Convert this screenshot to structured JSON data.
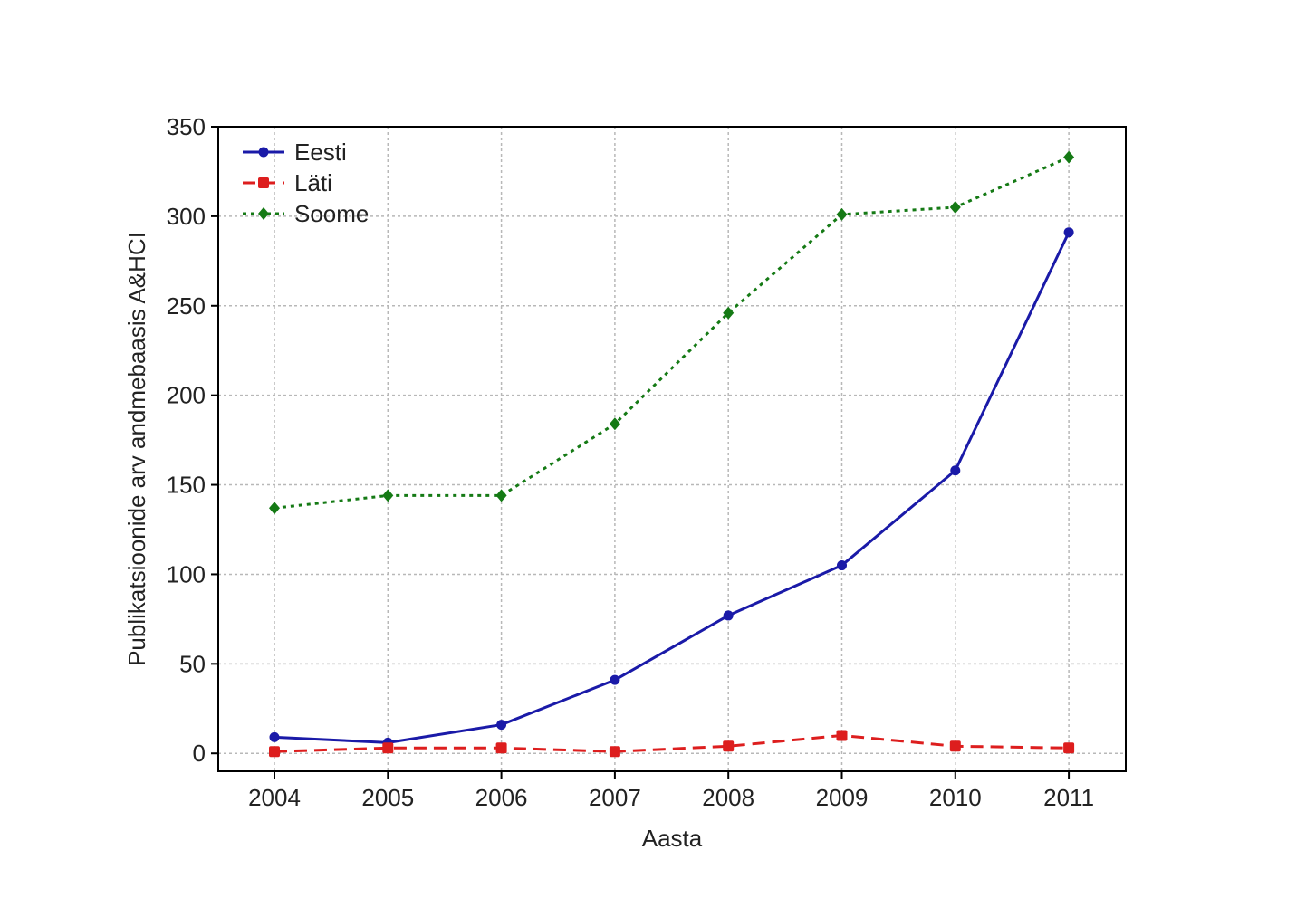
{
  "chart_data": {
    "type": "line",
    "title": "",
    "xlabel": "Aasta",
    "ylabel": "Publikatsioonide arv andmebaasis A&HCI",
    "categories": [
      "2004",
      "2005",
      "2006",
      "2007",
      "2008",
      "2009",
      "2010",
      "2011"
    ],
    "y_ticks": [
      "0",
      "50",
      "100",
      "150",
      "200",
      "250",
      "300",
      "350"
    ],
    "ylim": [
      -10,
      350
    ],
    "grid": true,
    "legend_position": "top-left",
    "series": [
      {
        "name": "Eesti",
        "color": "#1a1aa8",
        "line_style": "solid",
        "marker": "circle",
        "values": [
          9,
          6,
          16,
          41,
          77,
          105,
          158,
          291
        ]
      },
      {
        "name": "Läti",
        "color": "#dd1e1e",
        "line_style": "dashed",
        "marker": "square",
        "values": [
          1,
          3,
          3,
          1,
          4,
          10,
          4,
          3
        ]
      },
      {
        "name": "Soome",
        "color": "#157a15",
        "line_style": "dotted",
        "marker": "diamond",
        "values": [
          137,
          144,
          144,
          184,
          246,
          301,
          305,
          333
        ]
      }
    ]
  }
}
